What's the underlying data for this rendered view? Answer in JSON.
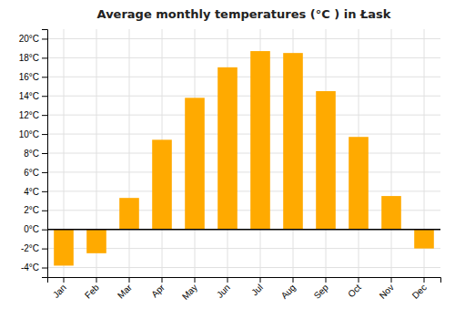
{
  "chart_data": {
    "type": "bar",
    "title": "Average monthly temperatures (°C ) in Łask",
    "categories": [
      "Jan",
      "Feb",
      "Mar",
      "Apr",
      "May",
      "Jun",
      "Jul",
      "Aug",
      "Sep",
      "Oct",
      "Nov",
      "Dec"
    ],
    "values": [
      -3.8,
      -2.5,
      3.3,
      9.4,
      13.8,
      17.0,
      18.7,
      18.5,
      14.5,
      9.7,
      3.5,
      -2.0
    ],
    "color": "#FFAA00",
    "ylim": [
      -5,
      21
    ],
    "yticks": [
      {
        "value": -4,
        "label": "-4°C"
      },
      {
        "value": -2,
        "label": "-2°C"
      },
      {
        "value": 0,
        "label": "0°C"
      },
      {
        "value": 2,
        "label": "2°C"
      },
      {
        "value": 4,
        "label": "4°C"
      },
      {
        "value": 6,
        "label": "6°C"
      },
      {
        "value": 8,
        "label": "8°C"
      },
      {
        "value": 10,
        "label": "10°C"
      },
      {
        "value": 12,
        "label": "12°C"
      },
      {
        "value": 14,
        "label": "14°C"
      },
      {
        "value": 16,
        "label": "16°C"
      },
      {
        "value": 18,
        "label": "18°C"
      },
      {
        "value": 20,
        "label": "20°C"
      }
    ],
    "grid": true
  }
}
